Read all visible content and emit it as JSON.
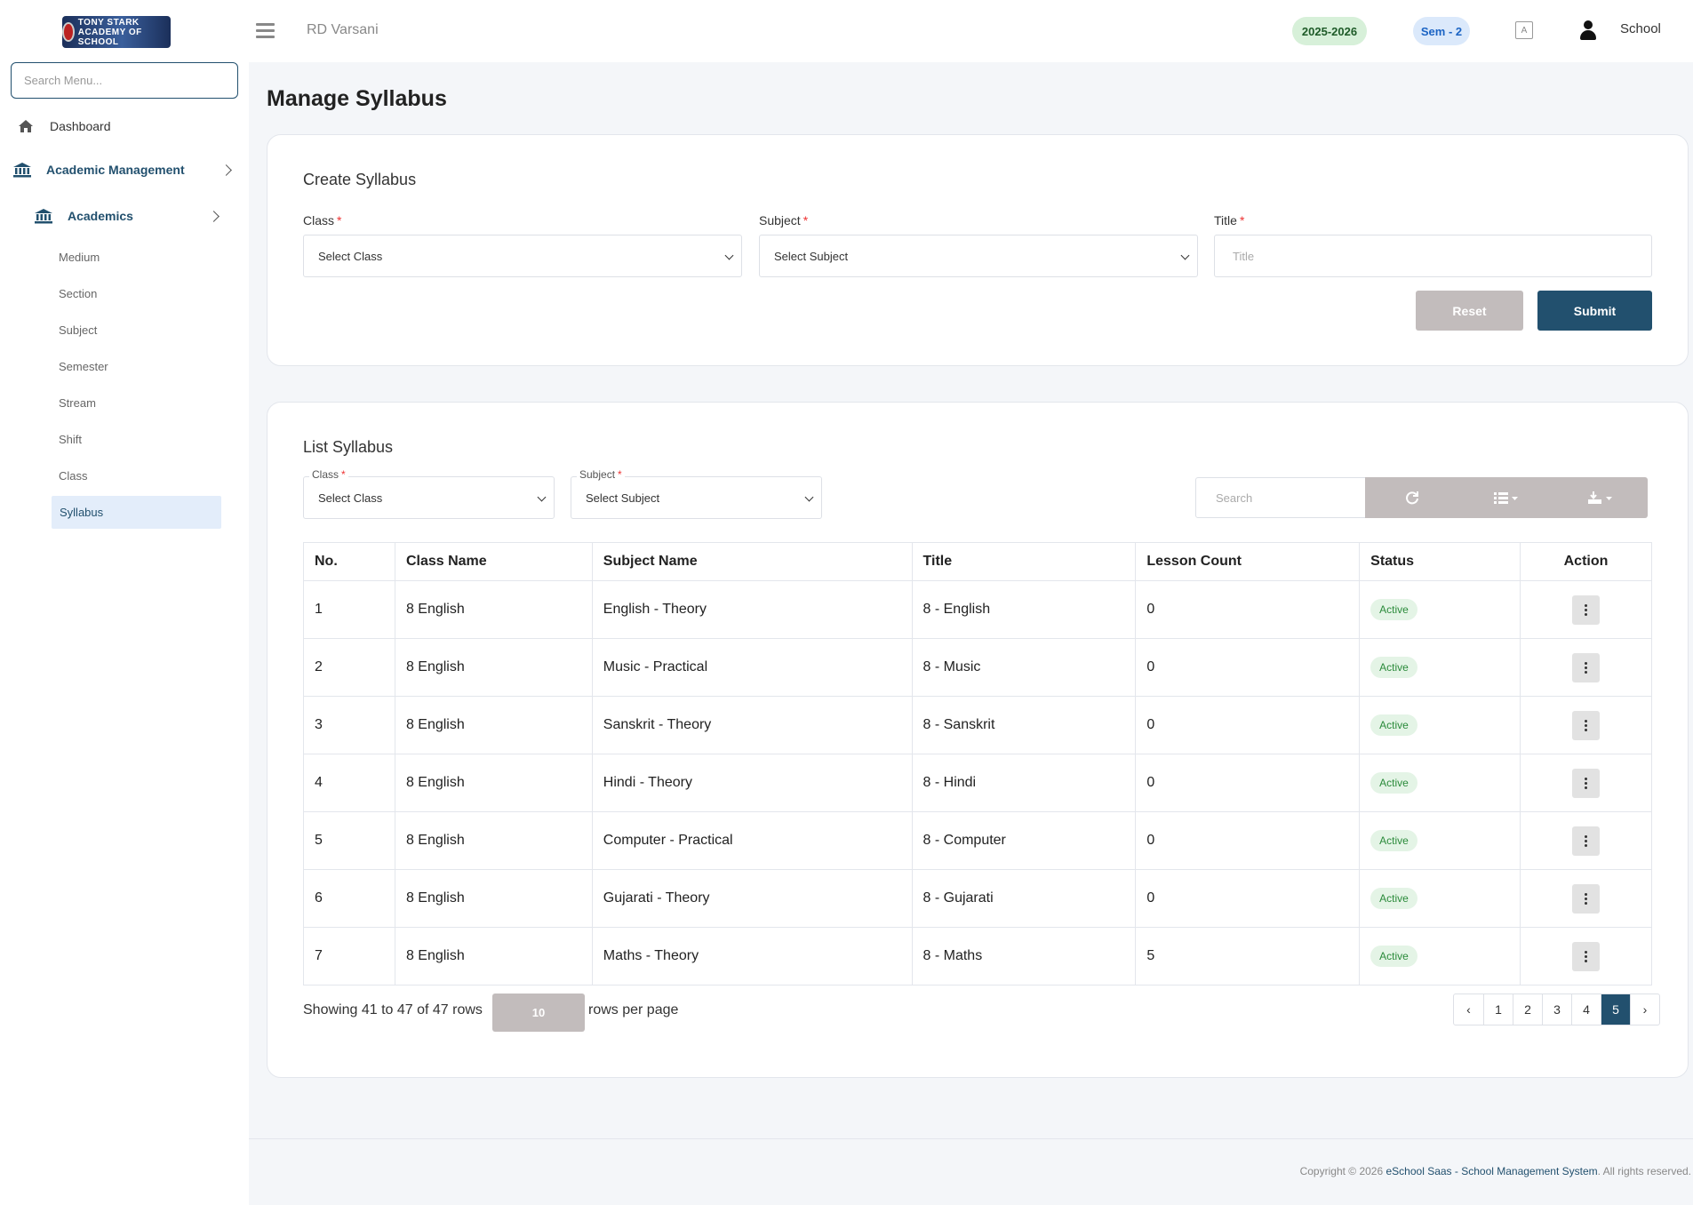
{
  "sidebar": {
    "logo_text": "TONY STARK ACADEMY OF SCHOOL",
    "search_placeholder": "Search Menu...",
    "dashboard": "Dashboard",
    "academic_management": "Academic Management",
    "academics": "Academics",
    "sub_items": [
      "Medium",
      "Section",
      "Subject",
      "Semester",
      "Stream",
      "Shift",
      "Class"
    ],
    "active_item": "Syllabus"
  },
  "topbar": {
    "school_name": "RD Varsani",
    "year": "2025-2026",
    "semester": "Sem - 2",
    "user": "School"
  },
  "page": {
    "title": "Manage Syllabus"
  },
  "create": {
    "title": "Create Syllabus",
    "class_label": "Class",
    "class_value": "Select Class",
    "subject_label": "Subject",
    "subject_value": "Select Subject",
    "title_label": "Title",
    "title_placeholder": "Title",
    "required_mark": "*",
    "reset": "Reset",
    "submit": "Submit"
  },
  "list": {
    "title": "List Syllabus",
    "class_label": "Class",
    "class_value": "Select Class",
    "subject_label": "Subject",
    "subject_value": "Select Subject",
    "search_placeholder": "Search",
    "columns": [
      "No.",
      "Class Name",
      "Subject Name",
      "Title",
      "Lesson Count",
      "Status",
      "Action"
    ],
    "rows": [
      {
        "no": "1",
        "class": "8 English",
        "subject": "English - Theory",
        "title": "8 - English",
        "lessons": "0",
        "status": "Active"
      },
      {
        "no": "2",
        "class": "8 English",
        "subject": "Music - Practical",
        "title": "8 - Music",
        "lessons": "0",
        "status": "Active"
      },
      {
        "no": "3",
        "class": "8 English",
        "subject": "Sanskrit - Theory",
        "title": "8 - Sanskrit",
        "lessons": "0",
        "status": "Active"
      },
      {
        "no": "4",
        "class": "8 English",
        "subject": "Hindi - Theory",
        "title": "8 - Hindi",
        "lessons": "0",
        "status": "Active"
      },
      {
        "no": "5",
        "class": "8 English",
        "subject": "Computer - Practical",
        "title": "8 - Computer",
        "lessons": "0",
        "status": "Active"
      },
      {
        "no": "6",
        "class": "8 English",
        "subject": "Gujarati - Theory",
        "title": "8 - Gujarati",
        "lessons": "0",
        "status": "Active"
      },
      {
        "no": "7",
        "class": "8 English",
        "subject": "Maths - Theory",
        "title": "8 - Maths",
        "lessons": "5",
        "status": "Active"
      }
    ],
    "showing": "Showing 41 to 47 of 47 rows",
    "per_page": "10",
    "per_page_label": "rows per page",
    "pages": [
      "‹",
      "1",
      "2",
      "3",
      "4",
      "5",
      "›"
    ],
    "active_page": "5"
  },
  "footer": {
    "prefix": "Copyright © 2026 ",
    "brand": "eSchool Saas - School Management System",
    "suffix": ". All rights reserved."
  },
  "colors": {
    "accent": "#22506e",
    "active_green": "#2a8a3a",
    "muted_button": "#c2bcbc"
  }
}
